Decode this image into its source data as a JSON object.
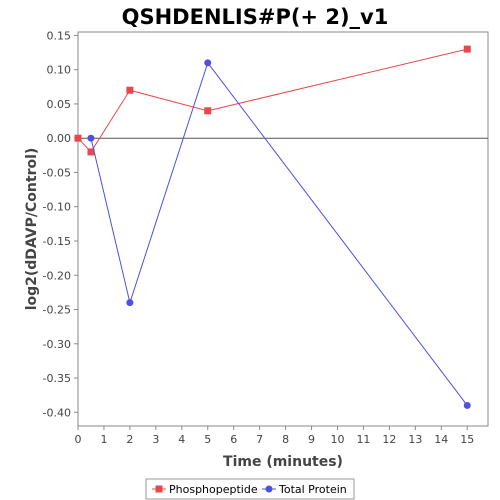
{
  "chart_data": {
    "type": "line",
    "title": "QSHDENLIS#P(+ 2)_v1",
    "xlabel": "Time (minutes)",
    "ylabel": "log2(dDAVP/Control)",
    "xlim": [
      0,
      15.8
    ],
    "ylim": [
      -0.42,
      0.155
    ],
    "xticks": [
      0,
      1,
      2,
      3,
      4,
      5,
      6,
      7,
      8,
      9,
      10,
      11,
      12,
      13,
      14,
      15
    ],
    "yticks": [
      0.15,
      0.1,
      0.05,
      0.0,
      -0.05,
      -0.1,
      -0.15,
      -0.2,
      -0.25,
      -0.3,
      -0.35,
      -0.4
    ],
    "ytick_labels": [
      "0.15",
      "0.10",
      "0.05",
      "0.00",
      "-0.05",
      "-0.10",
      "-0.15",
      "-0.20",
      "-0.25",
      "-0.30",
      "-0.35",
      "-0.40"
    ],
    "zero_line": true,
    "grid": false,
    "legend_position": "bottom",
    "series": [
      {
        "name": "Phosphopeptide",
        "color": "#e8484b",
        "marker": "square",
        "x": [
          0,
          0.5,
          2,
          5,
          15
        ],
        "y": [
          0.0,
          -0.02,
          0.07,
          0.04,
          0.13
        ]
      },
      {
        "name": "Total Protein",
        "color": "#4f4fe0",
        "marker": "circle",
        "x": [
          0.5,
          2,
          5,
          15
        ],
        "y": [
          0.0,
          -0.24,
          0.11,
          -0.39
        ]
      }
    ]
  }
}
